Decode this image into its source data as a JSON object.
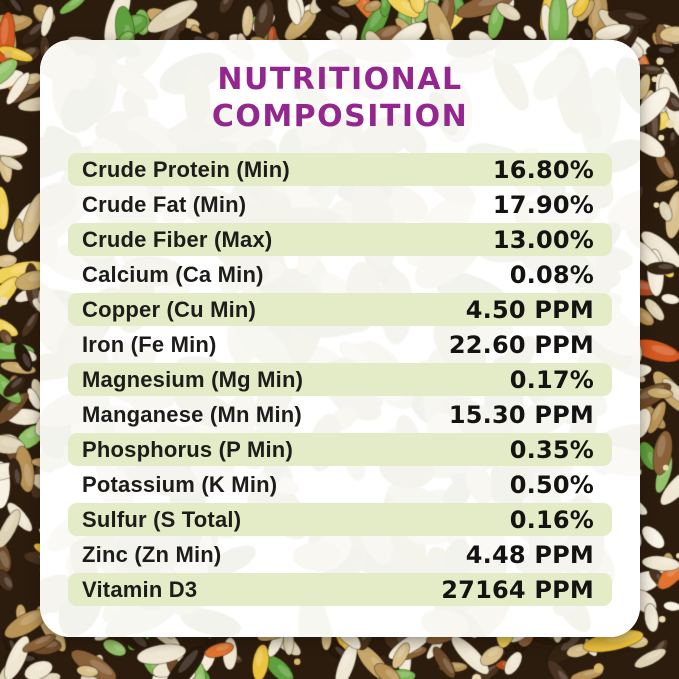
{
  "title": {
    "line1": "NUTRITIONAL",
    "line2": "COMPOSITION"
  },
  "table": {
    "rows": [
      {
        "label": "Crude Protein (Min)",
        "value": "16.80%"
      },
      {
        "label": "Crude Fat (Min)",
        "value": "17.90%"
      },
      {
        "label": "Crude Fiber (Max)",
        "value": "13.00%"
      },
      {
        "label": "Calcium (Ca Min)",
        "value": "0.08%"
      },
      {
        "label": "Copper (Cu Min)",
        "value": "4.50 PPM"
      },
      {
        "label": "Iron (Fe Min)",
        "value": "22.60 PPM"
      },
      {
        "label": "Magnesium (Mg Min)",
        "value": "0.17%"
      },
      {
        "label": "Manganese (Mn Min)",
        "value": "15.30 PPM"
      },
      {
        "label": "Phosphorus (P Min)",
        "value": "0.35%"
      },
      {
        "label": "Potassium (K Min)",
        "value": "0.50%"
      },
      {
        "label": "Sulfur (S Total)",
        "value": "0.16%"
      },
      {
        "label": "Zinc (Zn Min)",
        "value": "4.48 PPM"
      },
      {
        "label": "Vitamin D3",
        "value": "27164 PPM"
      }
    ]
  },
  "colors": {
    "title": "#93278f",
    "row_highlight": "#e3ecc6",
    "label_text": "#1d1c1a",
    "value_text": "#141312",
    "card_background": "#ffffff",
    "background_base": "#2b1c0e",
    "seed_palette": [
      "#efe7d2",
      "#f4ecd9",
      "#ded2b4",
      "#d9c08c",
      "#c8a86a",
      "#b89355",
      "#8a6138",
      "#6e4c2a",
      "#4a3320",
      "#352313",
      "#27180c",
      "#7cb551",
      "#5ea03c",
      "#93c468",
      "#e2742e",
      "#d4581f",
      "#ecc23e",
      "#f1d259",
      "#b44b22",
      "#f7f2e4"
    ],
    "watermark_palette": [
      "#f2f0e8",
      "#edece2",
      "#f6f4ee",
      "#e9eadf",
      "#eff1e6",
      "#ececdf"
    ]
  }
}
